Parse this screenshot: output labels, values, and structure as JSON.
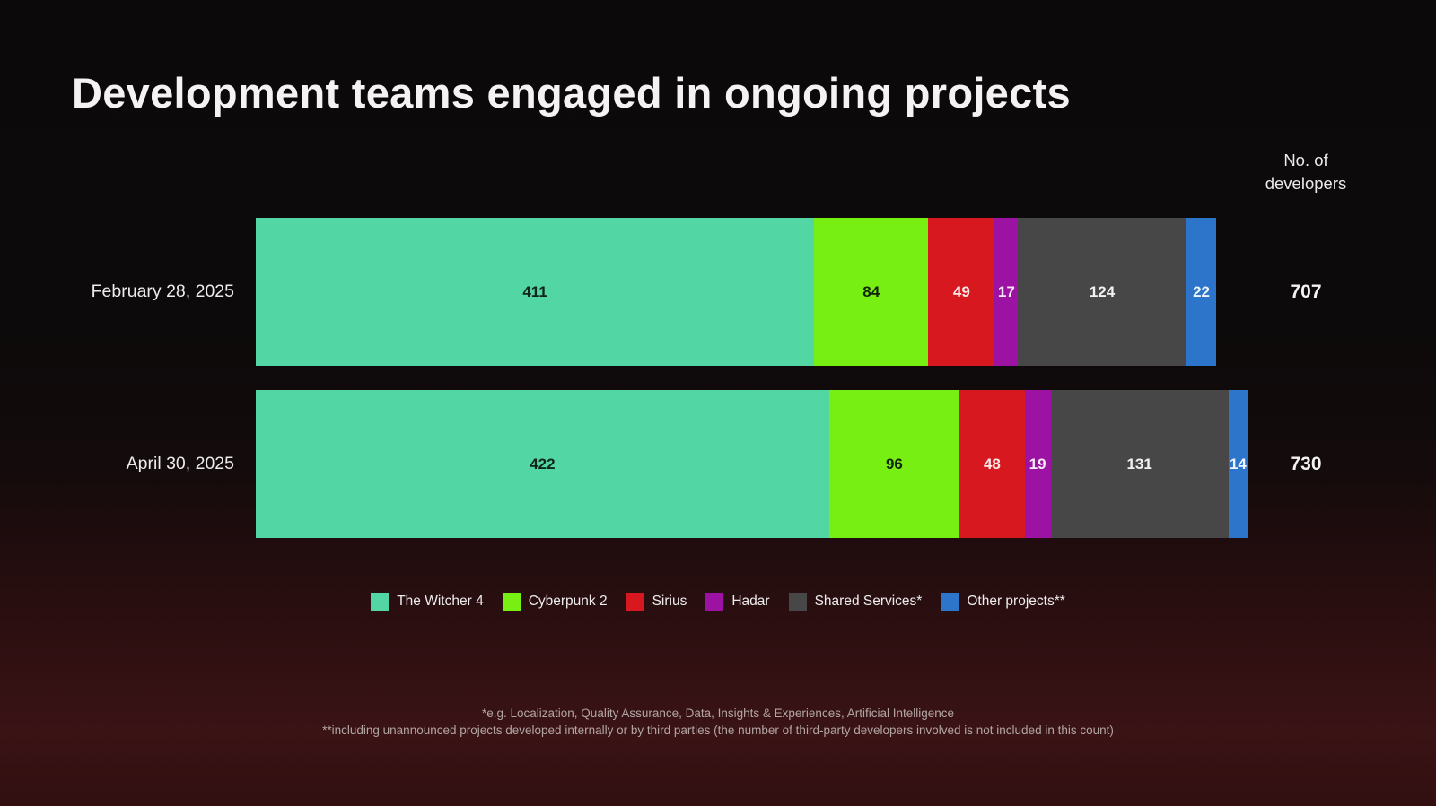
{
  "chart_data": {
    "type": "bar",
    "variant": "horizontal-stacked",
    "title": "Development teams engaged in ongoing projects",
    "value_header": "No. of developers",
    "categories": [
      "February 28, 2025",
      "April 30, 2025"
    ],
    "series": [
      {
        "name": "The Witcher 4",
        "color": "#52d6a4",
        "label_color": "#10251c",
        "values": [
          411,
          422
        ]
      },
      {
        "name": "Cyberpunk 2",
        "color": "#77ef12",
        "label_color": "#0f2407",
        "values": [
          84,
          96
        ]
      },
      {
        "name": "Sirius",
        "color": "#d7191f",
        "label_color": "#f8e9e9",
        "values": [
          49,
          48
        ]
      },
      {
        "name": "Hadar",
        "color": "#9c12a2",
        "label_color": "#f7ebf7",
        "values": [
          17,
          19
        ]
      },
      {
        "name": "Shared Services*",
        "color": "#474747",
        "label_color": "#f2f2f2",
        "values": [
          124,
          131
        ]
      },
      {
        "name": "Other projects**",
        "color": "#2d74cb",
        "label_color": "#eef4fb",
        "values": [
          22,
          14
        ]
      }
    ],
    "totals": [
      707,
      730
    ],
    "axis_max": 730,
    "legend_position": "bottom",
    "grid": false,
    "footnotes": [
      "*e.g. Localization, Quality Assurance, Data, Insights & Experiences, Artificial Intelligence",
      "**including unannounced projects developed internally or by third parties (the number of third-party developers involved is not included in this count)"
    ]
  }
}
